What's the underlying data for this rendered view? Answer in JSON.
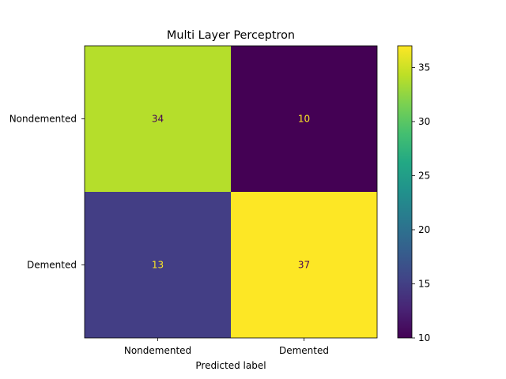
{
  "chart_data": {
    "type": "heatmap",
    "title": "Multi Layer Perceptron",
    "xlabel": "Predicted label",
    "ylabel": "",
    "x_categories": [
      "Nondemented",
      "Demented"
    ],
    "y_categories": [
      "Nondemented",
      "Demented"
    ],
    "values": [
      [
        34,
        10
      ],
      [
        13,
        37
      ]
    ],
    "colormap": "viridis",
    "colorbar": {
      "range": [
        10,
        37
      ],
      "ticks": [
        10,
        15,
        20,
        25,
        30,
        35
      ],
      "tick_labels": [
        "10",
        "15",
        "20",
        "25",
        "30",
        "35"
      ]
    },
    "cell_colors": [
      [
        "#b5de2b",
        "#440154"
      ],
      [
        "#433e85",
        "#fde725"
      ]
    ],
    "cell_text_colors": [
      [
        "#440154",
        "#fde725"
      ],
      [
        "#fde725",
        "#440154"
      ]
    ]
  }
}
